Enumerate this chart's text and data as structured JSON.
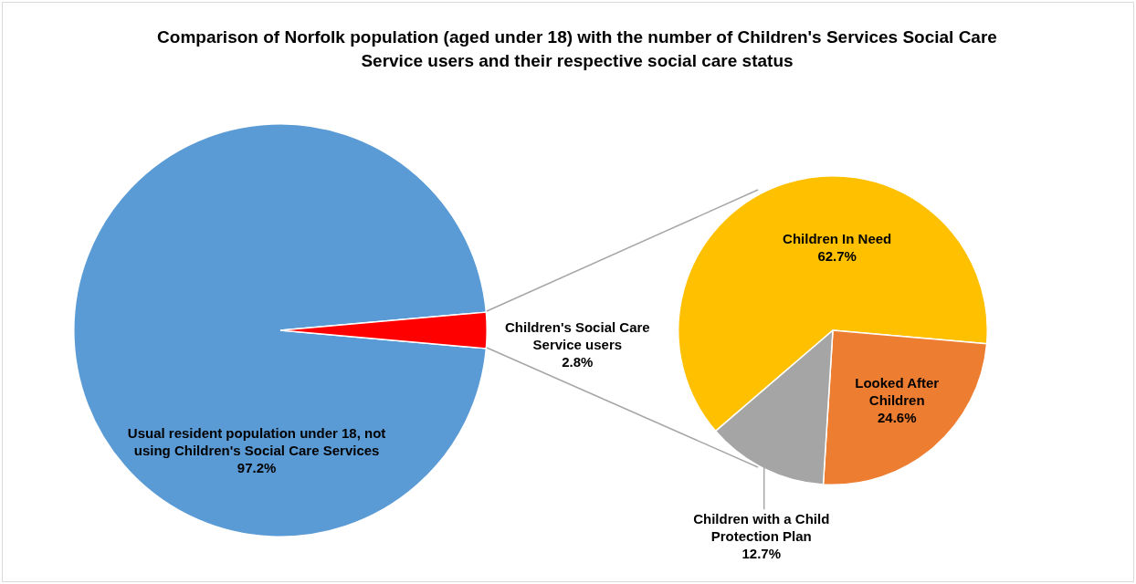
{
  "chart_data": [
    {
      "type": "pie",
      "title": "Comparison of Norfolk population (aged under 18) with the number of Children's Services Social Care Service users and their respective social care status",
      "categories": [
        "Usual resident population under 18, not using Children's Social Care Services",
        "Children's Social Care Service users"
      ],
      "values": [
        97.2,
        2.8
      ],
      "value_labels": [
        "97.2%",
        "2.8%"
      ],
      "colors": [
        "#5b9bd5",
        "#ff0000"
      ],
      "legend": false
    },
    {
      "type": "pie",
      "categories": [
        "Children In Need",
        "Looked After Children",
        "Children with a Child Protection Plan"
      ],
      "values": [
        62.7,
        24.6,
        12.7
      ],
      "value_labels": [
        "62.7%",
        "24.6%",
        "12.7%"
      ],
      "colors": [
        "#ffc000",
        "#ed7d31",
        "#a5a5a5"
      ],
      "legend": false
    }
  ]
}
